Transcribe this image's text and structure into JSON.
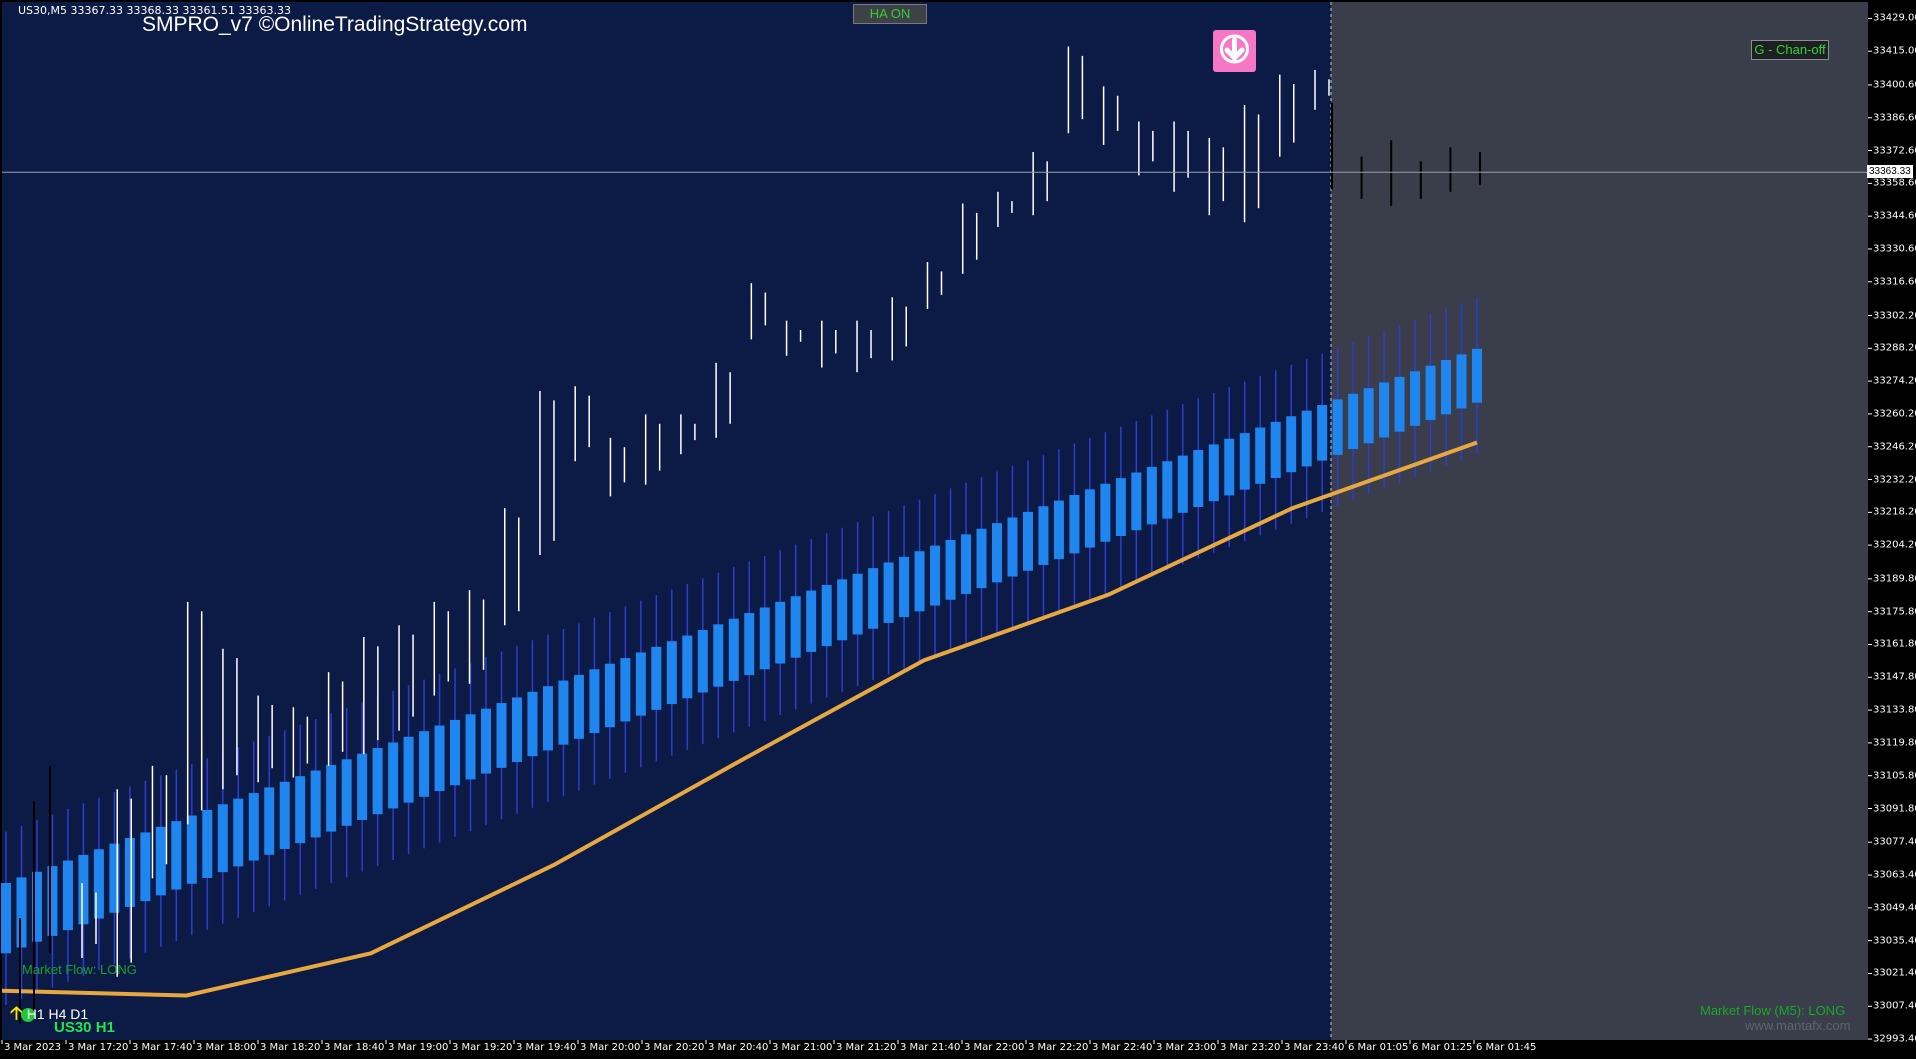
{
  "symbol_info": "US30,M5  33367.33 33368.33 33361.51 33363.33",
  "brand": "SMPRO_v7 ©OnlineTradingStrategy.com",
  "buttons": {
    "ha": "HA ON",
    "chan": "G - Chan-off"
  },
  "current_price": "33363.33",
  "market_flow": "Market Flow: LONG",
  "timeframes": "H1 H4 D1",
  "symbol_tf": "US30 H1",
  "market_flow_m5": "Market Flow (M5): LONG",
  "watermark": "www.mantafx.com",
  "icons": [
    "down-arrow-signal-icon",
    "up-arrow-icon",
    "green-circle-icon"
  ],
  "colors": {
    "chart_bg": "#0c1a46",
    "future_bg": "#3a3d4a",
    "ma_line": "#e8a840",
    "cloud_body": "#1f86f0",
    "cloud_wick": "#2f3cd0",
    "candle": "#ffffff"
  },
  "chart_data": {
    "type": "candlestick",
    "title": "",
    "xlabel": "",
    "ylabel": "",
    "ylim": [
      32993.0,
      33436.0
    ],
    "yticks": [
      "33429.00",
      "33415.00",
      "33400.60",
      "33386.60",
      "33372.60",
      "33358.60",
      "33344.60",
      "33330.60",
      "33316.60",
      "33302.20",
      "33288.20",
      "33274.20",
      "33260.20",
      "33246.20",
      "33232.20",
      "33218.20",
      "33204.20",
      "33189.80",
      "33175.80",
      "33161.80",
      "33147.80",
      "33133.80",
      "33119.80",
      "33105.80",
      "33091.80",
      "33077.40",
      "33063.40",
      "33049.40",
      "33035.40",
      "33021.40",
      "33007.40",
      "32993.40"
    ],
    "xticks": [
      "3 Mar 2023",
      "3 Mar 17:20",
      "3 Mar 17:40",
      "3 Mar 18:00",
      "3 Mar 18:20",
      "3 Mar 18:40",
      "3 Mar 19:00",
      "3 Mar 19:20",
      "3 Mar 19:40",
      "3 Mar 20:00",
      "3 Mar 20:20",
      "3 Mar 20:40",
      "3 Mar 21:00",
      "3 Mar 21:20",
      "3 Mar 21:40",
      "3 Mar 22:00",
      "3 Mar 22:20",
      "3 Mar 22:40",
      "3 Mar 23:00",
      "3 Mar 23:20",
      "3 Mar 23:40",
      "6 Mar 01:05",
      "6 Mar 01:25",
      "6 Mar 01:45"
    ],
    "candle_ranges": [
      [
        33028,
        33060
      ],
      [
        33020,
        33100
      ],
      [
        33062,
        33110
      ],
      [
        33085,
        33180
      ],
      [
        33100,
        33160
      ],
      [
        33103,
        33140
      ],
      [
        33105,
        33135
      ],
      [
        33110,
        33150
      ],
      [
        33115,
        33165
      ],
      [
        33125,
        33170
      ],
      [
        33140,
        33180
      ],
      [
        33145,
        33185
      ],
      [
        33170,
        33220
      ],
      [
        33200,
        33270
      ],
      [
        33240,
        33272
      ],
      [
        33225,
        33250
      ],
      [
        33230,
        33260
      ],
      [
        33243,
        33260
      ],
      [
        33250,
        33282
      ],
      [
        33292,
        33316
      ],
      [
        33285,
        33300
      ],
      [
        33280,
        33300
      ],
      [
        33278,
        33300
      ],
      [
        33283,
        33310
      ],
      [
        33305,
        33325
      ],
      [
        33320,
        33350
      ],
      [
        33340,
        33355
      ],
      [
        33345,
        33372
      ],
      [
        33380,
        33417
      ],
      [
        33375,
        33400
      ],
      [
        33362,
        33385
      ],
      [
        33355,
        33385
      ],
      [
        33345,
        33378
      ],
      [
        33342,
        33392
      ],
      [
        33370,
        33405
      ],
      [
        33390,
        33407
      ]
    ],
    "future_candles": [
      [
        33356,
        33393
      ],
      [
        33352,
        33370
      ],
      [
        33349,
        33377
      ],
      [
        33352,
        33368
      ],
      [
        33355,
        33374
      ],
      [
        33358,
        33372
      ]
    ],
    "cloud_range_start": [
      33030,
      33060
    ],
    "cloud_range_end": [
      33265,
      33288
    ],
    "ma_values": [
      [
        0,
        33014
      ],
      [
        0.1,
        33012
      ],
      [
        0.2,
        33030
      ],
      [
        0.3,
        33068
      ],
      [
        0.4,
        33112
      ],
      [
        0.5,
        33155
      ],
      [
        0.6,
        33183
      ],
      [
        0.7,
        33220
      ],
      [
        0.8,
        33248
      ]
    ]
  }
}
